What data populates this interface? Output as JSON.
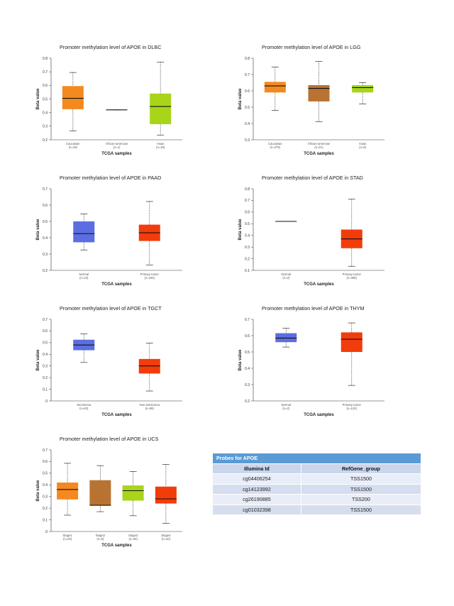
{
  "chart_data": [
    {
      "type": "boxplot",
      "title": "Promoter methylation level of APOE in DLBC",
      "xlabel": "TCGA samples",
      "ylabel": "Beta value",
      "ylim": [
        0.2,
        0.8
      ],
      "yticks": [
        0.2,
        0.3,
        0.4,
        0.5,
        0.6,
        0.7,
        0.8
      ],
      "categories": [
        "Caucasian",
        "African-american",
        "Asian"
      ],
      "counts": [
        "(n=29)",
        "(n=1)",
        "(n=18)"
      ],
      "colors": [
        "#f4891f",
        "#b87333",
        "#a8d41a"
      ],
      "boxes": [
        {
          "min": 0.265,
          "q1": 0.425,
          "median": 0.505,
          "q3": 0.595,
          "max": 0.695
        },
        {
          "min": 0.42,
          "q1": 0.42,
          "median": 0.42,
          "q3": 0.42,
          "max": 0.42
        },
        {
          "min": 0.235,
          "q1": 0.315,
          "median": 0.445,
          "q3": 0.54,
          "max": 0.77
        }
      ]
    },
    {
      "type": "boxplot",
      "title": "Promoter methylation level of APOE in LGG",
      "xlabel": "TCGA samples",
      "ylabel": "Beta value",
      "ylim": [
        0.3,
        0.8
      ],
      "yticks": [
        0.3,
        0.4,
        0.5,
        0.6,
        0.7,
        0.8
      ],
      "categories": [
        "Caucasian",
        "African-american",
        "Asian"
      ],
      "counts": [
        "(n=475)",
        "(n=21)",
        "(n=8)"
      ],
      "colors": [
        "#f4891f",
        "#b87333",
        "#a8d41a"
      ],
      "boxes": [
        {
          "min": 0.48,
          "q1": 0.59,
          "median": 0.63,
          "q3": 0.655,
          "max": 0.745
        },
        {
          "min": 0.41,
          "q1": 0.535,
          "median": 0.615,
          "q3": 0.635,
          "max": 0.78
        },
        {
          "min": 0.52,
          "q1": 0.59,
          "median": 0.62,
          "q3": 0.635,
          "max": 0.65
        }
      ]
    },
    {
      "type": "boxplot",
      "title": "Promoter methylation level of APOE in PAAD",
      "xlabel": "TCGA samples",
      "ylabel": "Beta value",
      "ylim": [
        0.2,
        0.7
      ],
      "yticks": [
        0.2,
        0.3,
        0.4,
        0.5,
        0.6,
        0.7
      ],
      "categories": [
        "Normal",
        "Primary tumor"
      ],
      "counts": [
        "(n=10)",
        "(n=184)"
      ],
      "colors": [
        "#5b6ee1",
        "#f23c0c"
      ],
      "boxes": [
        {
          "min": 0.325,
          "q1": 0.372,
          "median": 0.425,
          "q3": 0.5,
          "max": 0.545
        },
        {
          "min": 0.233,
          "q1": 0.38,
          "median": 0.43,
          "q3": 0.48,
          "max": 0.622
        }
      ]
    },
    {
      "type": "boxplot",
      "title": "Promoter methylation level of APOE in STAD",
      "xlabel": "TCGA samples",
      "ylabel": "Beta value",
      "ylim": [
        0.1,
        0.8
      ],
      "yticks": [
        0.1,
        0.2,
        0.3,
        0.4,
        0.5,
        0.6,
        0.7,
        0.8
      ],
      "categories": [
        "Normal",
        "Primary tumor"
      ],
      "counts": [
        "(n=2)",
        "(n=395)"
      ],
      "colors": [
        "#5b6ee1",
        "#f23c0c"
      ],
      "boxes": [
        {
          "min": 0.52,
          "q1": 0.52,
          "median": 0.52,
          "q3": 0.52,
          "max": 0.52
        },
        {
          "min": 0.135,
          "q1": 0.29,
          "median": 0.37,
          "q3": 0.45,
          "max": 0.71
        }
      ]
    },
    {
      "type": "boxplot",
      "title": "Promoter methylation level of APOE in TGCT",
      "xlabel": "TCGA samples",
      "ylabel": "Beta value",
      "ylim": [
        0,
        0.7
      ],
      "yticks": [
        0,
        0.1,
        0.2,
        0.3,
        0.4,
        0.5,
        0.6,
        0.7
      ],
      "categories": [
        "Seminoma",
        "Non-seminoma"
      ],
      "counts": [
        "(n=63)",
        "(n=69)"
      ],
      "colors": [
        "#5b6ee1",
        "#f23c0c"
      ],
      "boxes": [
        {
          "min": 0.33,
          "q1": 0.435,
          "median": 0.48,
          "q3": 0.525,
          "max": 0.575
        },
        {
          "min": 0.085,
          "q1": 0.235,
          "median": 0.3,
          "q3": 0.36,
          "max": 0.495
        }
      ]
    },
    {
      "type": "boxplot",
      "title": "Promoter methylation level of APOE in THYM",
      "xlabel": "TCGA samples",
      "ylabel": "Beta value",
      "ylim": [
        0.2,
        0.7
      ],
      "yticks": [
        0.2,
        0.3,
        0.4,
        0.5,
        0.6,
        0.7
      ],
      "categories": [
        "Normal",
        "Primary tumor"
      ],
      "counts": [
        "(n=2)",
        "(n=124)"
      ],
      "colors": [
        "#5b6ee1",
        "#f23c0c"
      ],
      "boxes": [
        {
          "min": 0.53,
          "q1": 0.56,
          "median": 0.585,
          "q3": 0.615,
          "max": 0.645
        },
        {
          "min": 0.295,
          "q1": 0.5,
          "median": 0.578,
          "q3": 0.62,
          "max": 0.678
        }
      ]
    },
    {
      "type": "boxplot",
      "title": "Promoter methylation level of APOE in UCS",
      "xlabel": "TCGA samples",
      "ylabel": "Beta value",
      "ylim": [
        0,
        0.7
      ],
      "yticks": [
        0,
        0.1,
        0.2,
        0.3,
        0.4,
        0.5,
        0.6,
        0.7
      ],
      "categories": [
        "Stage1",
        "Stage2",
        "Stage3",
        "Stage4"
      ],
      "counts": [
        "(n=20)",
        "(n=5)",
        "(n=20)",
        "(n=10)"
      ],
      "colors": [
        "#f4891f",
        "#b87333",
        "#a8d41a",
        "#f23c0c"
      ],
      "boxes": [
        {
          "min": 0.14,
          "q1": 0.275,
          "median": 0.36,
          "q3": 0.42,
          "max": 0.585
        },
        {
          "min": 0.17,
          "q1": 0.225,
          "median": 0.225,
          "q3": 0.44,
          "max": 0.565
        },
        {
          "min": 0.135,
          "q1": 0.265,
          "median": 0.35,
          "q3": 0.395,
          "max": 0.515
        },
        {
          "min": 0.07,
          "q1": 0.24,
          "median": 0.28,
          "q3": 0.385,
          "max": 0.575
        }
      ]
    }
  ],
  "probe_table": {
    "title": "Probes for APOE",
    "columns": [
      "Illumina Id",
      "RefGene_group"
    ],
    "rows": [
      [
        "cg04406254",
        "TSS1500"
      ],
      [
        "cg14123992",
        "TSS1500"
      ],
      [
        "cg26190885",
        "TSS200"
      ],
      [
        "cg01032398",
        "TSS1500"
      ]
    ]
  }
}
